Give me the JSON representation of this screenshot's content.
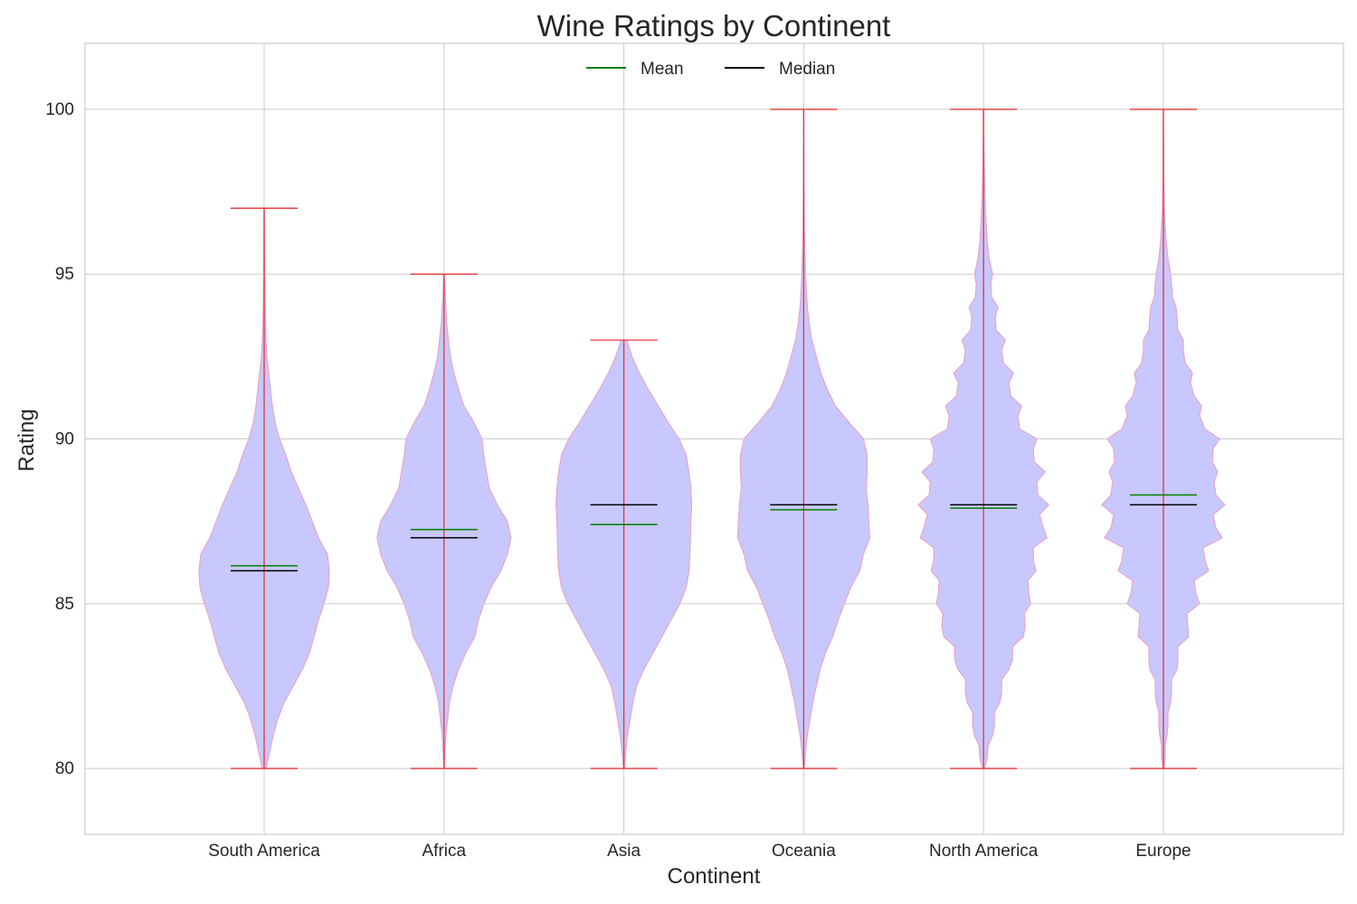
{
  "chart_data": {
    "type": "violin",
    "title": "Wine Ratings by Continent",
    "xlabel": "Continent",
    "ylabel": "Rating",
    "ylim": [
      78,
      102
    ],
    "yticks": [
      80,
      85,
      90,
      95,
      100
    ],
    "grid": true,
    "legend": {
      "placement": "top-center",
      "entries": [
        {
          "label": "Mean",
          "color": "#008000"
        },
        {
          "label": "Median",
          "color": "#000000"
        }
      ]
    },
    "colors": {
      "violin_fill": "#c8c8ff",
      "violin_edge": "#e8a6c8",
      "whisker": "#e8343a",
      "mean": "#008000",
      "median": "#000000",
      "grid": "#cccccc",
      "frame": "#cccccc",
      "text": "#262626"
    },
    "categories": [
      "South America",
      "Africa",
      "Asia",
      "Oceania",
      "North America",
      "Europe"
    ],
    "series": [
      {
        "name": "South America",
        "min": 80,
        "max": 97,
        "mean": 86.15,
        "median": 86.0,
        "profile": [
          [
            80,
            0.02
          ],
          [
            80.5,
            0.06
          ],
          [
            81,
            0.1
          ],
          [
            81.5,
            0.15
          ],
          [
            82,
            0.22
          ],
          [
            82.5,
            0.32
          ],
          [
            83,
            0.42
          ],
          [
            83.5,
            0.5
          ],
          [
            84,
            0.55
          ],
          [
            84.5,
            0.6
          ],
          [
            85,
            0.66
          ],
          [
            85.5,
            0.71
          ],
          [
            86,
            0.72
          ],
          [
            86.5,
            0.7
          ],
          [
            87,
            0.6
          ],
          [
            87.5,
            0.53
          ],
          [
            88,
            0.46
          ],
          [
            88.5,
            0.38
          ],
          [
            89,
            0.3
          ],
          [
            89.5,
            0.24
          ],
          [
            90,
            0.17
          ],
          [
            90.5,
            0.12
          ],
          [
            91,
            0.09
          ],
          [
            91.5,
            0.07
          ],
          [
            92,
            0.05
          ],
          [
            92.5,
            0.03
          ],
          [
            93,
            0.02
          ],
          [
            94,
            0.01
          ],
          [
            95,
            0.006
          ],
          [
            96,
            0.003
          ],
          [
            97,
            0.002
          ]
        ]
      },
      {
        "name": "Africa",
        "min": 80,
        "max": 95,
        "mean": 87.25,
        "median": 87.0,
        "profile": [
          [
            80,
            0.003
          ],
          [
            80.5,
            0.01
          ],
          [
            81,
            0.02
          ],
          [
            81.5,
            0.04
          ],
          [
            82,
            0.06
          ],
          [
            82.5,
            0.1
          ],
          [
            83,
            0.16
          ],
          [
            83.5,
            0.24
          ],
          [
            84,
            0.34
          ],
          [
            84.5,
            0.38
          ],
          [
            85,
            0.44
          ],
          [
            85.5,
            0.52
          ],
          [
            86,
            0.63
          ],
          [
            86.5,
            0.7
          ],
          [
            87,
            0.74
          ],
          [
            87.5,
            0.7
          ],
          [
            88,
            0.59
          ],
          [
            88.5,
            0.5
          ],
          [
            89,
            0.47
          ],
          [
            89.5,
            0.44
          ],
          [
            90,
            0.42
          ],
          [
            90.5,
            0.33
          ],
          [
            91,
            0.22
          ],
          [
            91.5,
            0.16
          ],
          [
            92,
            0.11
          ],
          [
            92.5,
            0.07
          ],
          [
            93,
            0.05
          ],
          [
            93.5,
            0.03
          ],
          [
            94,
            0.02
          ],
          [
            94.5,
            0.01
          ],
          [
            95,
            0.003
          ]
        ]
      },
      {
        "name": "Asia",
        "min": 80,
        "max": 93,
        "mean": 87.4,
        "median": 88.0,
        "profile": [
          [
            80,
            0.005
          ],
          [
            80.5,
            0.02
          ],
          [
            81,
            0.04
          ],
          [
            81.5,
            0.07
          ],
          [
            82,
            0.1
          ],
          [
            82.5,
            0.14
          ],
          [
            83,
            0.22
          ],
          [
            83.5,
            0.32
          ],
          [
            84,
            0.42
          ],
          [
            84.5,
            0.52
          ],
          [
            85,
            0.62
          ],
          [
            85.5,
            0.69
          ],
          [
            86,
            0.72
          ],
          [
            86.5,
            0.73
          ],
          [
            87,
            0.735
          ],
          [
            87.5,
            0.74
          ],
          [
            88,
            0.75
          ],
          [
            88.5,
            0.74
          ],
          [
            89,
            0.72
          ],
          [
            89.5,
            0.69
          ],
          [
            90,
            0.61
          ],
          [
            90.5,
            0.49
          ],
          [
            91,
            0.38
          ],
          [
            91.5,
            0.27
          ],
          [
            92,
            0.17
          ],
          [
            92.5,
            0.09
          ],
          [
            93,
            0.03
          ]
        ]
      },
      {
        "name": "Oceania",
        "min": 80,
        "max": 100,
        "mean": 87.85,
        "median": 88.0,
        "profile": [
          [
            80,
            0.005
          ],
          [
            80.5,
            0.02
          ],
          [
            81,
            0.04
          ],
          [
            81.5,
            0.07
          ],
          [
            82,
            0.1
          ],
          [
            82.5,
            0.14
          ],
          [
            83,
            0.18
          ],
          [
            83.5,
            0.24
          ],
          [
            84,
            0.32
          ],
          [
            84.5,
            0.38
          ],
          [
            85,
            0.45
          ],
          [
            85.5,
            0.52
          ],
          [
            86,
            0.62
          ],
          [
            86.5,
            0.66
          ],
          [
            87,
            0.73
          ],
          [
            87.5,
            0.72
          ],
          [
            88,
            0.71
          ],
          [
            88.5,
            0.69
          ],
          [
            89,
            0.7
          ],
          [
            89.5,
            0.7
          ],
          [
            90,
            0.66
          ],
          [
            90.5,
            0.5
          ],
          [
            91,
            0.35
          ],
          [
            91.5,
            0.26
          ],
          [
            92,
            0.19
          ],
          [
            92.5,
            0.14
          ],
          [
            93,
            0.09
          ],
          [
            93.5,
            0.06
          ],
          [
            94,
            0.04
          ],
          [
            94.5,
            0.03
          ],
          [
            95,
            0.02
          ],
          [
            96,
            0.01
          ],
          [
            97,
            0.006
          ],
          [
            98,
            0.003
          ],
          [
            99,
            0.002
          ],
          [
            100,
            0.001
          ]
        ]
      },
      {
        "name": "North America",
        "min": 80,
        "max": 100,
        "mean": 87.9,
        "median": 88.0,
        "profile": [
          [
            80,
            0.01
          ],
          [
            80.3,
            0.04
          ],
          [
            80.7,
            0.05
          ],
          [
            81,
            0.1
          ],
          [
            81.3,
            0.12
          ],
          [
            81.7,
            0.12
          ],
          [
            82,
            0.18
          ],
          [
            82.3,
            0.2
          ],
          [
            82.7,
            0.2
          ],
          [
            83,
            0.28
          ],
          [
            83.3,
            0.32
          ],
          [
            83.7,
            0.32
          ],
          [
            84,
            0.44
          ],
          [
            84.3,
            0.46
          ],
          [
            84.7,
            0.45
          ],
          [
            85,
            0.52
          ],
          [
            85.3,
            0.5
          ],
          [
            85.7,
            0.49
          ],
          [
            86,
            0.58
          ],
          [
            86.3,
            0.55
          ],
          [
            86.7,
            0.55
          ],
          [
            87,
            0.7
          ],
          [
            87.3,
            0.66
          ],
          [
            87.7,
            0.62
          ],
          [
            88,
            0.72
          ],
          [
            88.3,
            0.6
          ],
          [
            88.7,
            0.59
          ],
          [
            89,
            0.68
          ],
          [
            89.3,
            0.56
          ],
          [
            89.7,
            0.55
          ],
          [
            90,
            0.59
          ],
          [
            90.3,
            0.4
          ],
          [
            90.7,
            0.38
          ],
          [
            91,
            0.42
          ],
          [
            91.3,
            0.3
          ],
          [
            91.7,
            0.28
          ],
          [
            92,
            0.33
          ],
          [
            92.3,
            0.22
          ],
          [
            92.7,
            0.2
          ],
          [
            93,
            0.24
          ],
          [
            93.3,
            0.14
          ],
          [
            93.7,
            0.13
          ],
          [
            94,
            0.16
          ],
          [
            94.3,
            0.09
          ],
          [
            94.7,
            0.08
          ],
          [
            95,
            0.1
          ],
          [
            95.5,
            0.06
          ],
          [
            96,
            0.04
          ],
          [
            96.5,
            0.03
          ],
          [
            97,
            0.02
          ],
          [
            98,
            0.01
          ],
          [
            99,
            0.004
          ],
          [
            100,
            0.002
          ]
        ]
      },
      {
        "name": "Europe",
        "min": 80,
        "max": 100,
        "mean": 88.3,
        "median": 88.0,
        "profile": [
          [
            80,
            0.005
          ],
          [
            80.3,
            0.02
          ],
          [
            80.7,
            0.02
          ],
          [
            81,
            0.04
          ],
          [
            81.3,
            0.05
          ],
          [
            81.7,
            0.05
          ],
          [
            82,
            0.08
          ],
          [
            82.3,
            0.09
          ],
          [
            82.7,
            0.09
          ],
          [
            83,
            0.15
          ],
          [
            83.3,
            0.16
          ],
          [
            83.7,
            0.16
          ],
          [
            84,
            0.28
          ],
          [
            84.3,
            0.27
          ],
          [
            84.7,
            0.26
          ],
          [
            85,
            0.4
          ],
          [
            85.3,
            0.36
          ],
          [
            85.7,
            0.34
          ],
          [
            86,
            0.5
          ],
          [
            86.3,
            0.46
          ],
          [
            86.7,
            0.44
          ],
          [
            87,
            0.65
          ],
          [
            87.3,
            0.58
          ],
          [
            87.7,
            0.55
          ],
          [
            88,
            0.68
          ],
          [
            88.3,
            0.58
          ],
          [
            88.7,
            0.56
          ],
          [
            89,
            0.6
          ],
          [
            89.3,
            0.54
          ],
          [
            89.7,
            0.55
          ],
          [
            90,
            0.62
          ],
          [
            90.3,
            0.46
          ],
          [
            90.7,
            0.4
          ],
          [
            91,
            0.42
          ],
          [
            91.3,
            0.34
          ],
          [
            91.7,
            0.3
          ],
          [
            92,
            0.32
          ],
          [
            92.3,
            0.24
          ],
          [
            92.7,
            0.22
          ],
          [
            93,
            0.22
          ],
          [
            93.3,
            0.16
          ],
          [
            93.7,
            0.15
          ],
          [
            94,
            0.14
          ],
          [
            94.3,
            0.1
          ],
          [
            94.7,
            0.09
          ],
          [
            95,
            0.08
          ],
          [
            95.5,
            0.05
          ],
          [
            96,
            0.03
          ],
          [
            96.5,
            0.02
          ],
          [
            97,
            0.01
          ],
          [
            98,
            0.005
          ],
          [
            99,
            0.003
          ],
          [
            100,
            0.001
          ]
        ]
      }
    ]
  }
}
